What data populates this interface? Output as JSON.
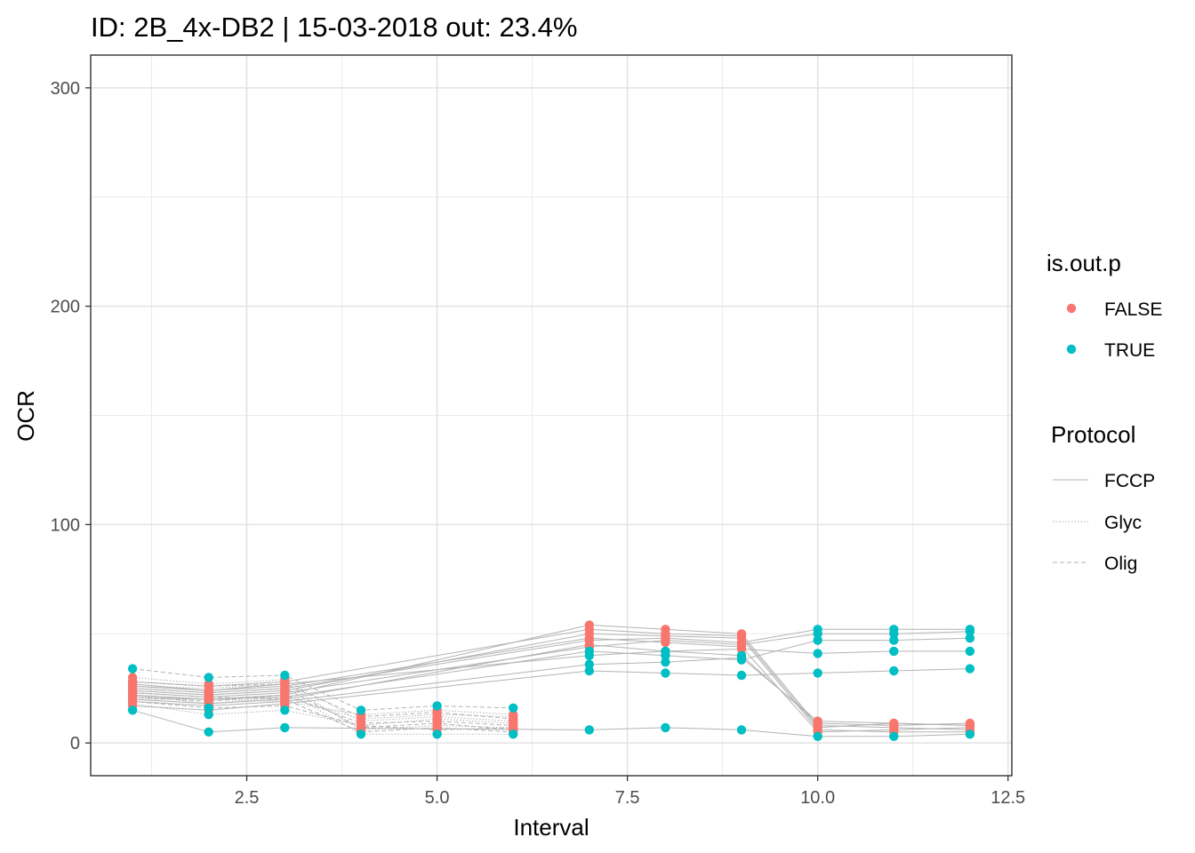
{
  "chart_data": {
    "type": "line",
    "title": "ID: 2B_4x-DB2 | 15-03-2018  out: 23.4%",
    "xlabel": "Interval",
    "ylabel": "OCR",
    "xlim": [
      0.45,
      12.55
    ],
    "ylim": [
      -15,
      315
    ],
    "x_ticks": [
      2.5,
      5.0,
      7.5,
      10.0,
      12.5
    ],
    "x_tick_labels": [
      "2.5",
      "5.0",
      "7.5",
      "10.0",
      "12.5"
    ],
    "y_ticks": [
      0,
      100,
      200,
      300
    ],
    "y_tick_labels": [
      "0",
      "100",
      "200",
      "300"
    ],
    "grid": true,
    "legend_position": "right",
    "color_legend": {
      "title": "is.out.p",
      "entries": [
        {
          "label": "FALSE",
          "color": "#F8766D"
        },
        {
          "label": "TRUE",
          "color": "#00BFC4"
        }
      ]
    },
    "linetype_legend": {
      "title": "Protocol",
      "entries": [
        {
          "label": "FCCP",
          "dash": "solid"
        },
        {
          "label": "Glyc",
          "dash": "dotted"
        },
        {
          "label": "Olig",
          "dash": "dashed"
        }
      ]
    },
    "series": [
      {
        "protocol": "FCCP",
        "x": [
          1,
          2,
          3,
          7,
          8,
          9,
          10,
          11,
          12
        ],
        "y": [
          22,
          20,
          22,
          54,
          52,
          50,
          8,
          7,
          6
        ],
        "outlier": [
          false,
          false,
          false,
          false,
          false,
          false,
          false,
          false,
          false
        ]
      },
      {
        "protocol": "FCCP",
        "x": [
          1,
          2,
          3,
          7,
          8,
          9,
          10,
          11,
          12
        ],
        "y": [
          24,
          22,
          24,
          50,
          49,
          48,
          6,
          5,
          5
        ],
        "outlier": [
          false,
          false,
          false,
          false,
          false,
          false,
          false,
          false,
          false
        ]
      },
      {
        "protocol": "FCCP",
        "x": [
          1,
          2,
          3,
          7,
          8,
          9,
          10,
          11,
          12
        ],
        "y": [
          26,
          24,
          26,
          48,
          46,
          44,
          5,
          6,
          7
        ],
        "outlier": [
          false,
          false,
          false,
          false,
          false,
          false,
          false,
          false,
          false
        ]
      },
      {
        "protocol": "FCCP",
        "x": [
          1,
          2,
          3,
          7,
          8,
          9,
          10,
          11,
          12
        ],
        "y": [
          20,
          18,
          20,
          45,
          42,
          40,
          9,
          8,
          9
        ],
        "outlier": [
          false,
          false,
          false,
          false,
          true,
          true,
          false,
          false,
          false
        ]
      },
      {
        "protocol": "FCCP",
        "x": [
          1,
          2,
          3,
          7,
          8,
          9,
          10,
          11,
          12
        ],
        "y": [
          28,
          26,
          28,
          52,
          50,
          49,
          7,
          9,
          8
        ],
        "outlier": [
          false,
          false,
          false,
          false,
          false,
          false,
          false,
          false,
          false
        ]
      },
      {
        "protocol": "FCCP",
        "x": [
          1,
          2,
          3,
          7,
          8,
          9,
          10,
          11,
          12
        ],
        "y": [
          25,
          23,
          25,
          47,
          48,
          46,
          52,
          52,
          52
        ],
        "outlier": [
          false,
          false,
          false,
          false,
          false,
          false,
          true,
          true,
          true
        ]
      },
      {
        "protocol": "FCCP",
        "x": [
          1,
          2,
          3,
          7,
          8,
          9,
          10,
          11,
          12
        ],
        "y": [
          23,
          21,
          23,
          44,
          47,
          45,
          50,
          50,
          51
        ],
        "outlier": [
          false,
          false,
          false,
          false,
          false,
          false,
          true,
          true,
          true
        ]
      },
      {
        "protocol": "FCCP",
        "x": [
          1,
          2,
          3,
          7,
          8,
          9,
          10,
          11,
          12
        ],
        "y": [
          21,
          20,
          21,
          42,
          40,
          38,
          47,
          47,
          48
        ],
        "outlier": [
          false,
          false,
          false,
          true,
          true,
          true,
          true,
          true,
          true
        ]
      },
      {
        "protocol": "FCCP",
        "x": [
          1,
          2,
          3,
          7,
          8,
          9,
          10,
          11,
          12
        ],
        "y": [
          27,
          24,
          27,
          40,
          42,
          43,
          41,
          42,
          42
        ],
        "outlier": [
          false,
          false,
          false,
          true,
          false,
          false,
          true,
          true,
          true
        ]
      },
      {
        "protocol": "FCCP",
        "x": [
          1,
          2,
          3,
          7,
          8,
          9,
          10,
          11,
          12
        ],
        "y": [
          19,
          17,
          19,
          36,
          37,
          39,
          10,
          9,
          8
        ],
        "outlier": [
          false,
          false,
          false,
          true,
          true,
          true,
          false,
          false,
          false
        ]
      },
      {
        "protocol": "FCCP",
        "x": [
          1,
          2,
          3,
          7,
          8,
          9,
          10,
          11,
          12
        ],
        "y": [
          17,
          15,
          18,
          33,
          32,
          31,
          32,
          33,
          34
        ],
        "outlier": [
          false,
          false,
          false,
          true,
          true,
          true,
          true,
          true,
          true
        ]
      },
      {
        "protocol": "FCCP",
        "x": [
          1,
          2,
          3,
          7,
          8,
          9,
          10,
          11,
          12
        ],
        "y": [
          15,
          5,
          7,
          6,
          7,
          6,
          3,
          3,
          4
        ],
        "outlier": [
          true,
          true,
          true,
          true,
          true,
          true,
          true,
          true,
          true
        ]
      },
      {
        "protocol": "Glyc",
        "x": [
          1,
          2,
          3,
          4,
          5,
          6
        ],
        "y": [
          18,
          13,
          15,
          8,
          11,
          9
        ],
        "outlier": [
          false,
          true,
          true,
          false,
          false,
          false
        ]
      },
      {
        "protocol": "Glyc",
        "x": [
          1,
          2,
          3,
          4,
          5,
          6
        ],
        "y": [
          22,
          18,
          21,
          11,
          13,
          12
        ],
        "outlier": [
          false,
          false,
          false,
          false,
          false,
          false
        ]
      },
      {
        "protocol": "Glyc",
        "x": [
          1,
          2,
          3,
          4,
          5,
          6
        ],
        "y": [
          26,
          25,
          27,
          6,
          8,
          7
        ],
        "outlier": [
          false,
          false,
          false,
          false,
          false,
          false
        ]
      },
      {
        "protocol": "Glyc",
        "x": [
          1,
          2,
          3,
          4,
          5,
          6
        ],
        "y": [
          30,
          27,
          29,
          10,
          12,
          10
        ],
        "outlier": [
          false,
          false,
          false,
          false,
          false,
          false
        ]
      },
      {
        "protocol": "Glyc",
        "x": [
          1,
          2,
          3,
          4,
          5,
          6
        ],
        "y": [
          24,
          22,
          24,
          4,
          4,
          4
        ],
        "outlier": [
          false,
          false,
          false,
          true,
          true,
          true
        ]
      },
      {
        "protocol": "Glyc",
        "x": [
          1,
          2,
          3,
          4,
          5,
          6
        ],
        "y": [
          20,
          20,
          19,
          13,
          15,
          13
        ],
        "outlier": [
          false,
          false,
          false,
          false,
          false,
          false
        ]
      },
      {
        "protocol": "Olig",
        "x": [
          1,
          2,
          3,
          4,
          5,
          6
        ],
        "y": [
          34,
          30,
          31,
          15,
          17,
          16
        ],
        "outlier": [
          true,
          true,
          true,
          true,
          true,
          true
        ]
      },
      {
        "protocol": "Olig",
        "x": [
          1,
          2,
          3,
          4,
          5,
          6
        ],
        "y": [
          21,
          19,
          22,
          9,
          10,
          8
        ],
        "outlier": [
          false,
          false,
          false,
          false,
          false,
          false
        ]
      },
      {
        "protocol": "Olig",
        "x": [
          1,
          2,
          3,
          4,
          5,
          6
        ],
        "y": [
          25,
          23,
          25,
          7,
          9,
          6
        ],
        "outlier": [
          false,
          false,
          false,
          false,
          false,
          false
        ]
      },
      {
        "protocol": "Olig",
        "x": [
          1,
          2,
          3,
          4,
          5,
          6
        ],
        "y": [
          28,
          26,
          27,
          12,
          14,
          11
        ],
        "outlier": [
          false,
          false,
          false,
          false,
          false,
          false
        ]
      },
      {
        "protocol": "Olig",
        "x": [
          1,
          2,
          3,
          4,
          5,
          6
        ],
        "y": [
          23,
          21,
          20,
          5,
          7,
          5
        ],
        "outlier": [
          false,
          false,
          false,
          false,
          false,
          false
        ]
      },
      {
        "protocol": "Olig",
        "x": [
          1,
          2,
          3,
          4,
          5,
          6
        ],
        "y": [
          19,
          16,
          17,
          8,
          6,
          7
        ],
        "outlier": [
          false,
          true,
          false,
          false,
          false,
          false
        ]
      }
    ]
  }
}
